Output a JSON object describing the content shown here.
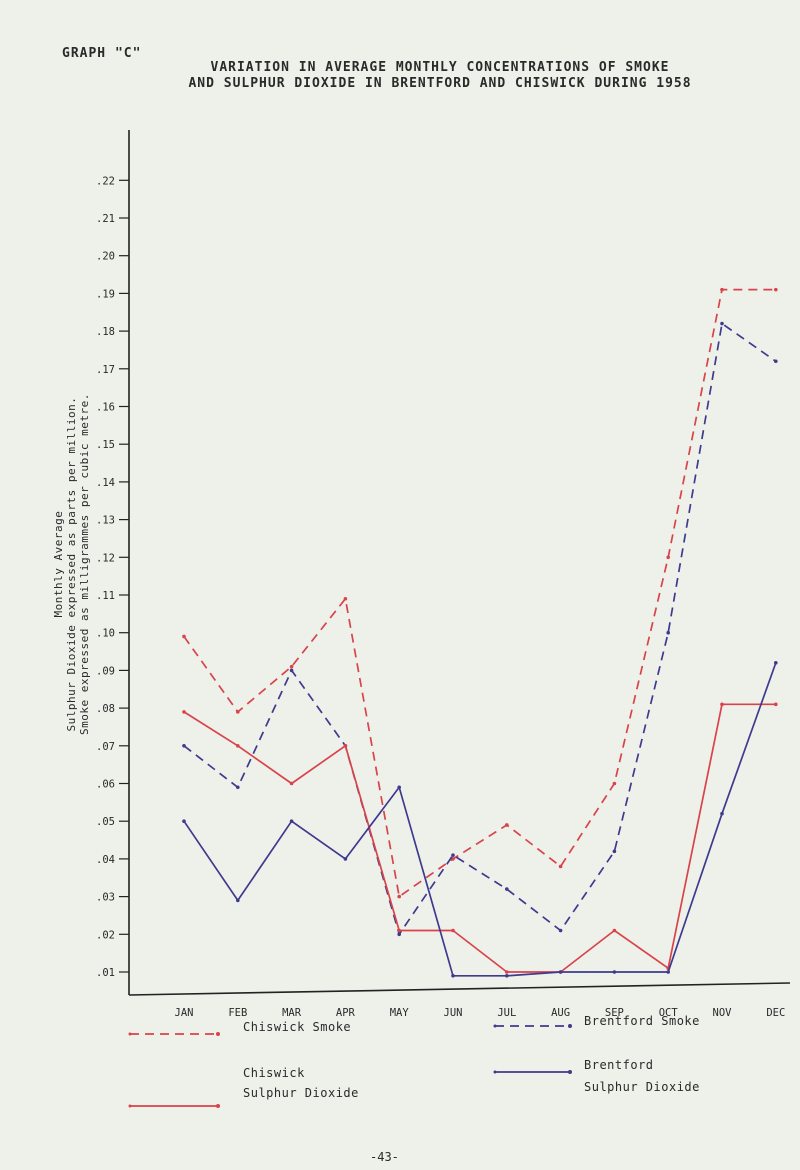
{
  "header": {
    "graph_label": "GRAPH \"C\"",
    "title_line1": "VARIATION IN AVERAGE MONTHLY CONCENTRATIONS OF SMOKE",
    "title_line2": "AND SULPHUR DIOXIDE IN BRENTFORD AND CHISWICK DURING 1958"
  },
  "ylabel": {
    "line1": "Monthly Average",
    "line2": "Sulphur Dioxide expressed as parts per million.",
    "line3": "Smoke expressed as milligrammes per cubic metre."
  },
  "legend": {
    "chiswick_smoke": "Chiswick Smoke",
    "brentford_smoke": "Brentford Smoke",
    "chiswick_so2_line1": "Chiswick",
    "chiswick_so2_line2": "Sulphur Dioxide",
    "brentford_so2_line1": "Brentford",
    "brentford_so2_line2": "Sulphur Dioxide"
  },
  "page_number": "-43-",
  "colors": {
    "red": "#d9434a",
    "blue": "#3e3a8e",
    "axis": "#222222"
  },
  "chart_data": {
    "type": "line",
    "categories": [
      "JAN",
      "FEB",
      "MAR",
      "APR",
      "MAY",
      "JUN",
      "JUL",
      "AUG",
      "SEP",
      "OCT",
      "NOV",
      "DEC"
    ],
    "yticks": [
      ".01",
      ".02",
      ".03",
      ".04",
      ".05",
      ".06",
      ".07",
      ".08",
      ".09",
      ".10",
      ".11",
      ".12",
      ".13",
      ".14",
      ".15",
      ".16",
      ".17",
      ".18",
      ".19",
      ".20",
      ".21",
      ".22"
    ],
    "ylim": [
      0.0,
      0.23
    ],
    "series": [
      {
        "name": "Chiswick Smoke",
        "style": "dashed",
        "color": "red",
        "values": [
          0.099,
          0.079,
          0.091,
          0.109,
          0.03,
          0.04,
          0.049,
          0.038,
          0.06,
          0.12,
          0.191,
          0.191
        ]
      },
      {
        "name": "Brentford Smoke",
        "style": "dashed",
        "color": "blue",
        "values": [
          0.07,
          0.059,
          0.09,
          0.07,
          0.02,
          0.041,
          0.032,
          0.021,
          0.042,
          0.1,
          0.182,
          0.172
        ]
      },
      {
        "name": "Chiswick Sulphur Dioxide",
        "style": "solid",
        "color": "red",
        "values": [
          0.079,
          0.07,
          0.06,
          0.07,
          0.021,
          0.021,
          0.01,
          0.01,
          0.021,
          0.011,
          0.081,
          0.081
        ]
      },
      {
        "name": "Brentford Sulphur Dioxide",
        "style": "solid",
        "color": "blue",
        "values": [
          0.05,
          0.029,
          0.05,
          0.04,
          0.059,
          0.009,
          0.009,
          0.01,
          0.01,
          0.01,
          0.052,
          0.092
        ]
      }
    ]
  }
}
